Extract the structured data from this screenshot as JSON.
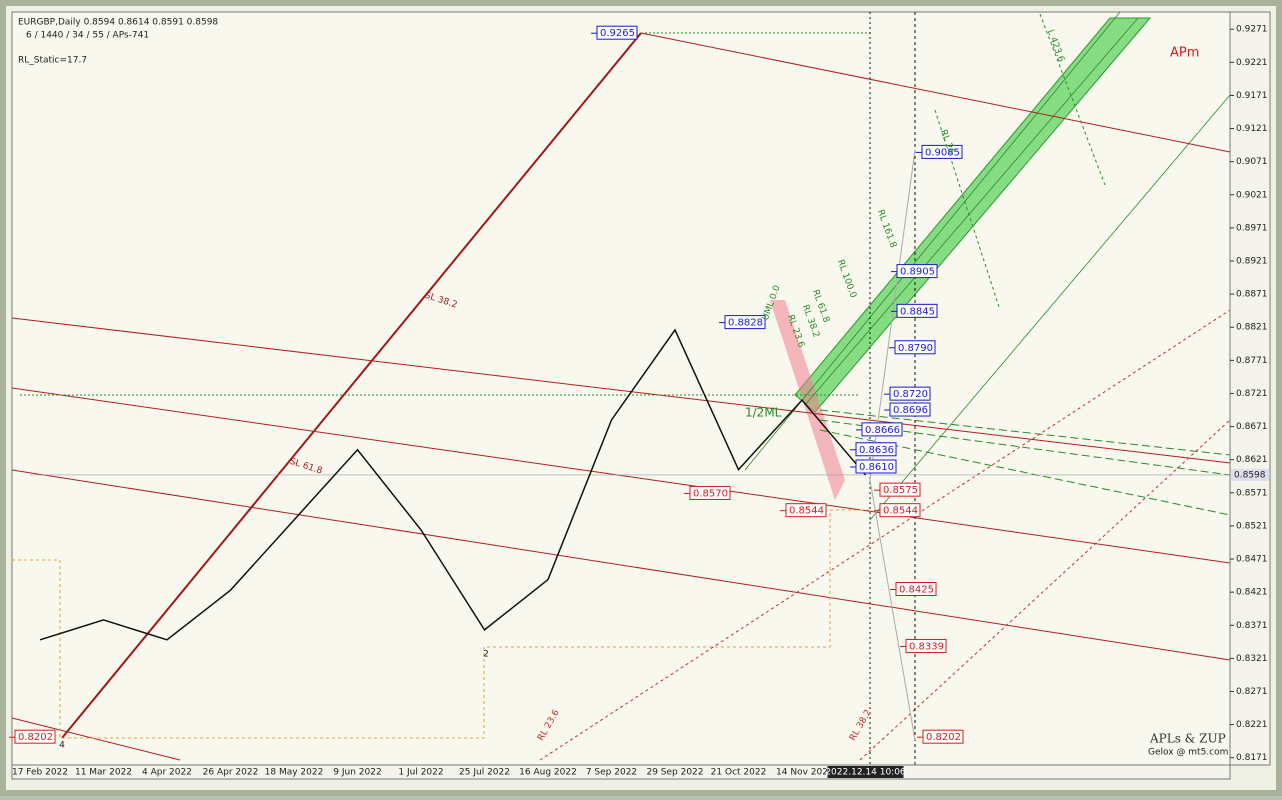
{
  "chart_data": {
    "type": "line",
    "header": "EURGBP,Daily  0.8594 0.8614 0.8591 0.8598",
    "subheader": "6 / 1440 / 34 / 55 / APs-741",
    "static_label": "RL_Static=17.7",
    "brand": "APm",
    "footer_title": "APLs & ZUP",
    "footer_sub": "Gelox @ mt5.com",
    "categories": [
      "17 Feb 2022",
      "11 Mar 2022",
      "4 Apr 2022",
      "26 Apr 2022",
      "18 May 2022",
      "9 Jun 2022",
      "1 Jul 2022",
      "25 Jul 2022",
      "16 Aug 2022",
      "7 Sep 2022",
      "29 Sep 2022",
      "21 Oct 2022",
      "14 Nov 202",
      "2022.12.14 10:06"
    ],
    "series": [
      {
        "name": "EURGBP",
        "color": "#111111",
        "values": [
          0.8349,
          0.8379,
          0.8349,
          0.8424,
          0.853,
          0.8636,
          0.8515,
          0.8364,
          0.844,
          0.8681,
          0.8817,
          0.8606,
          0.8711,
          0.8598
        ]
      }
    ],
    "current_price": 0.8598,
    "ylim": [
      0.816,
      0.9297
    ],
    "yticks": [
      0.9271,
      0.9221,
      0.9171,
      0.9121,
      0.9071,
      0.9021,
      0.8971,
      0.8921,
      0.8871,
      0.8821,
      0.8771,
      0.8721,
      0.8671,
      0.8621,
      0.8571,
      0.8521,
      0.8471,
      0.8421,
      0.8371,
      0.8321,
      0.8271,
      0.8221,
      0.8171
    ],
    "price_tags": [
      {
        "value": 0.9265,
        "color": "#1a1acc"
      },
      {
        "value": 0.8828,
        "color": "#1a1acc"
      },
      {
        "value": 0.857,
        "label": "0.8570",
        "color": "#cc2020"
      },
      {
        "value": 0.8544,
        "color": "#cc2020"
      },
      {
        "value": 0.8202,
        "color": "#cc2020"
      },
      {
        "value": 0.9085,
        "color": "#1a1acc"
      },
      {
        "value": 0.8905,
        "color": "#1a1acc"
      },
      {
        "value": 0.8845,
        "color": "#1a1acc"
      },
      {
        "value": 0.879,
        "label": "0.8790",
        "color": "#1a1acc"
      },
      {
        "value": 0.872,
        "label": "0.8720",
        "color": "#1a1acc"
      },
      {
        "value": 0.8696,
        "color": "#1a1acc"
      },
      {
        "value": 0.8666,
        "color": "#1a1acc"
      },
      {
        "value": 0.8636,
        "color": "#1a1acc"
      },
      {
        "value": 0.861,
        "label": "0.8610",
        "color": "#1a1acc"
      },
      {
        "value": 0.8575,
        "color": "#cc2020"
      },
      {
        "value": 0.8544,
        "color": "#cc2020"
      },
      {
        "value": 0.8425,
        "color": "#cc2020"
      },
      {
        "value": 0.8339,
        "color": "#cc2020"
      },
      {
        "value": 0.8202,
        "color": "#cc2020"
      }
    ],
    "line_labels": [
      "SL 38.2",
      "SL 61.8",
      "1/2ML",
      "UML 0.0",
      "RL 61.8",
      "RL 38.2",
      "RL 23.6",
      "RL 100.0",
      "RL 161.8",
      "RL 26",
      "L 423.6",
      "RL 23.6",
      "RL 38.2"
    ],
    "pivots": [
      "2",
      "4"
    ]
  }
}
